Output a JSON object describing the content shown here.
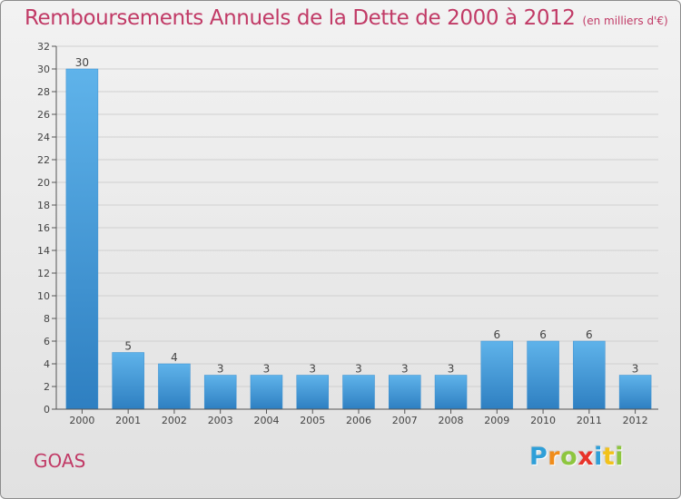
{
  "header": {
    "title": "Remboursements Annuels de la Dette de 2000 à 2012",
    "subtitle": "(en milliers d'€)"
  },
  "footer": {
    "place": "GOAS",
    "logo_letters": [
      "P",
      "r",
      "o",
      "x",
      "i",
      "t",
      "i"
    ]
  },
  "colors": {
    "title": "#c13a66",
    "bar_light": "#5fb3ea",
    "bar_dark": "#2e7fc1",
    "grid": "#d0d0d0",
    "axis": "#555555"
  },
  "chart_data": {
    "type": "bar",
    "title": "Remboursements Annuels de la Dette de 2000 à 2012",
    "xlabel": "",
    "ylabel": "",
    "categories": [
      "2000",
      "2001",
      "2002",
      "2003",
      "2004",
      "2005",
      "2006",
      "2007",
      "2008",
      "2009",
      "2010",
      "2011",
      "2012"
    ],
    "values": [
      30,
      5,
      4,
      3,
      3,
      3,
      3,
      3,
      3,
      6,
      6,
      6,
      3
    ],
    "ylim": [
      0,
      32
    ],
    "yticks": [
      0,
      2,
      4,
      6,
      8,
      10,
      12,
      14,
      16,
      18,
      20,
      22,
      24,
      26,
      28,
      30,
      32
    ],
    "grid": true
  }
}
